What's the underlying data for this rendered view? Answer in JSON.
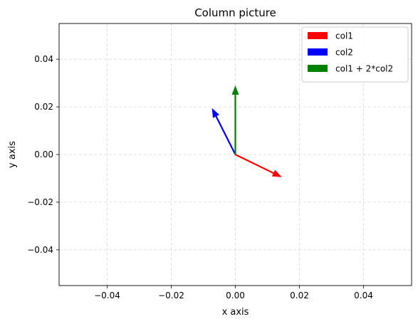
{
  "chart_data": {
    "type": "quiver",
    "title": "Column picture",
    "xlabel": "x axis",
    "ylabel": "y axis",
    "xlim": [
      -0.055,
      0.055
    ],
    "ylim": [
      -0.055,
      0.055
    ],
    "grid": true,
    "grid_style": "dashed",
    "legend_position": "top-right",
    "xticks": [
      -0.04,
      -0.02,
      0.0,
      0.02,
      0.04
    ],
    "yticks": [
      -0.04,
      -0.02,
      0.0,
      0.02,
      0.04
    ],
    "xtick_labels": [
      "−0.04",
      "−0.02",
      "0.00",
      "0.02",
      "0.04"
    ],
    "ytick_labels": [
      "−0.04",
      "−0.02",
      "0.00",
      "0.02",
      "0.04"
    ],
    "series": [
      {
        "name": "col1",
        "color": "#ff0000",
        "origin": [
          0,
          0
        ],
        "vector": [
          0.0145,
          -0.0095
        ]
      },
      {
        "name": "col2",
        "color": "#0000ff",
        "origin": [
          0,
          0
        ],
        "vector": [
          -0.0073,
          0.0195
        ]
      },
      {
        "name": "col1 + 2*col2",
        "color": "#008000",
        "origin": [
          0,
          0
        ],
        "vector": [
          0.0,
          0.029
        ]
      }
    ]
  }
}
